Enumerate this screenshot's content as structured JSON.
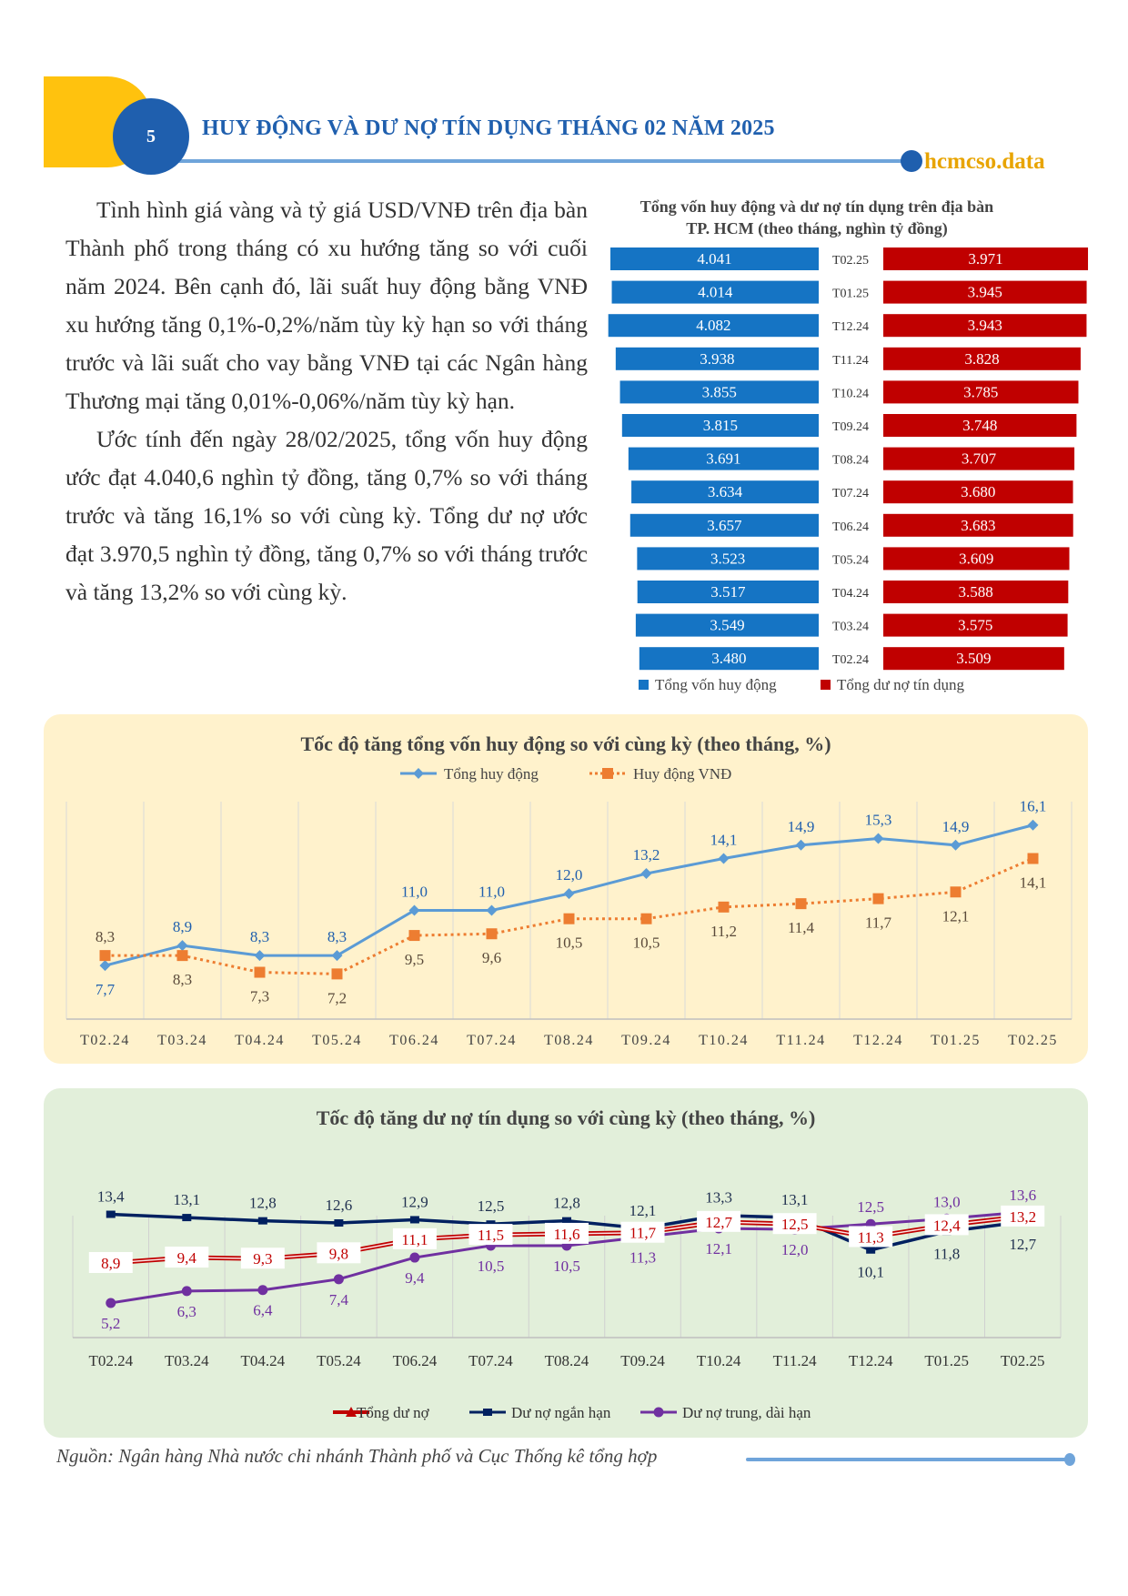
{
  "header": {
    "section_number": "5",
    "title": "HUY ĐỘNG VÀ DƯ NỢ TÍN DỤNG THÁNG 02 NĂM 2025",
    "brand": "hcmcso.data"
  },
  "body": {
    "paragraphs": [
      "Tình hình giá vàng và tỷ giá USD/VNĐ trên địa bàn Thành phố trong tháng có xu hướng tăng so với cuối năm 2024. Bên cạnh đó, lãi suất huy động bằng VNĐ xu hướng tăng 0,1%-0,2%/năm tùy kỳ hạn so với tháng trước và lãi suất cho vay bằng VNĐ tại các Ngân hàng Thương mại tăng 0,01%-0,06%/năm tùy kỳ hạn.",
      "Ước tính đến ngày 28/02/2025, tổng vốn huy động ước đạt 4.040,6 nghìn tỷ đồng, tăng 0,7% so với tháng trước và tăng 16,1% so với cùng kỳ. Tổng dư nợ ước đạt 3.970,5 nghìn tỷ đồng, tăng 0,7% so với tháng trước và tăng 13,2% so với cùng kỳ."
    ]
  },
  "source": "Nguồn: Ngân hàng Nhà nước chi nhánh Thành phố và Cục Thống kê tổng hợp",
  "colors": {
    "brand_blue": "#1F5FAE",
    "accent_yellow": "#FFC20E",
    "bar_blue": "#1574C4",
    "bar_red": "#C00000",
    "line_orange": "#ED7D31",
    "line_blue": "#5B9BD5",
    "navy": "#002060",
    "purple": "#7030A0",
    "panel_yellow": "#FFF2CC",
    "panel_green": "#E2EFDA"
  },
  "chart_data": [
    {
      "type": "bar",
      "title_lines": [
        "Tổng vốn huy động và dư nợ tín dụng trên địa bàn",
        "TP. HCM (theo tháng, nghìn tỷ đồng)"
      ],
      "categories": [
        "T02.25",
        "T01.25",
        "T12.24",
        "T11.24",
        "T10.24",
        "T09.24",
        "T08.24",
        "T07.24",
        "T06.24",
        "T05.24",
        "T04.24",
        "T03.24",
        "T02.24"
      ],
      "series": [
        {
          "name": "Tổng vốn huy động",
          "color": "#1574C4",
          "values": [
            4041,
            4014,
            4082,
            3938,
            3855,
            3815,
            3691,
            3634,
            3657,
            3523,
            3517,
            3549,
            3480
          ],
          "labels": [
            "4.041",
            "4.014",
            "4.082",
            "3.938",
            "3.855",
            "3.815",
            "3.691",
            "3.634",
            "3.657",
            "3.523",
            "3.517",
            "3.549",
            "3.480"
          ]
        },
        {
          "name": "Tổng dư nợ tín dụng",
          "color": "#C00000",
          "values": [
            3971,
            3945,
            3943,
            3828,
            3785,
            3748,
            3707,
            3680,
            3683,
            3609,
            3588,
            3575,
            3509
          ],
          "labels": [
            "3.971",
            "3.945",
            "3.943",
            "3.828",
            "3.785",
            "3.748",
            "3.707",
            "3.680",
            "3.683",
            "3.609",
            "3.588",
            "3.575",
            "3.509"
          ]
        }
      ],
      "xlim": [
        0,
        4200
      ],
      "legend": "bottom"
    },
    {
      "type": "line",
      "title": "Tốc độ tăng tổng vốn huy động so với cùng kỳ (theo tháng, %)",
      "categories": [
        "T02.24",
        "T03.24",
        "T04.24",
        "T05.24",
        "T06.24",
        "T07.24",
        "T08.24",
        "T09.24",
        "T10.24",
        "T11.24",
        "T12.24",
        "T01.25",
        "T02.25"
      ],
      "series": [
        {
          "name": "Tổng huy động",
          "color": "#5B9BD5",
          "marker": "diamond",
          "values": [
            7.7,
            8.9,
            8.3,
            8.3,
            11.0,
            11.0,
            12.0,
            13.2,
            14.1,
            14.9,
            15.3,
            14.9,
            16.1
          ],
          "labels": [
            "7,7",
            "8,9",
            "8,3",
            "8,3",
            "11,0",
            "11,0",
            "12,0",
            "13,2",
            "14,1",
            "14,9",
            "15,3",
            "14,9",
            "16,1"
          ],
          "label_pos": [
            "below",
            "above",
            "above",
            "above",
            "above",
            "above",
            "above",
            "above",
            "above",
            "above",
            "above",
            "above",
            "above"
          ]
        },
        {
          "name": "Huy động VNĐ",
          "color": "#ED7D31",
          "marker": "square",
          "dash": true,
          "values": [
            8.3,
            8.3,
            7.3,
            7.2,
            9.5,
            9.6,
            10.5,
            10.5,
            11.2,
            11.4,
            11.7,
            12.1,
            14.1
          ],
          "labels": [
            "8,3",
            "8,3",
            "7,3",
            "7,2",
            "9,5",
            "9,6",
            "10,5",
            "10,5",
            "11,2",
            "11,4",
            "11,7",
            "12,1",
            "14,1"
          ],
          "label_pos": [
            "above",
            "below",
            "below",
            "below",
            "below",
            "below",
            "below",
            "below",
            "below",
            "below",
            "below",
            "below",
            "below"
          ]
        }
      ],
      "ylim": [
        4.5,
        17.5
      ],
      "grid": "vertical",
      "legend": "top"
    },
    {
      "type": "line",
      "title": "Tốc độ tăng dư nợ tín dụng so với cùng kỳ (theo tháng, %)",
      "categories": [
        "T02.24",
        "T03.24",
        "T04.24",
        "T05.24",
        "T06.24",
        "T07.24",
        "T08.24",
        "T09.24",
        "T10.24",
        "T11.24",
        "T12.24",
        "T01.25",
        "T02.25"
      ],
      "series": [
        {
          "name": "Tổng dư nợ",
          "color": "#C00000",
          "marker": "triangle",
          "values": [
            8.9,
            9.4,
            9.3,
            9.8,
            11.1,
            11.5,
            11.6,
            11.7,
            12.7,
            12.5,
            11.3,
            12.4,
            13.2
          ],
          "labels": [
            "8,9",
            "9,4",
            "9,3",
            "9,8",
            "11,1",
            "11,5",
            "11,6",
            "11,7",
            "12,7",
            "12,5",
            "11,3",
            "12,4",
            "13,2"
          ]
        },
        {
          "name": "Dư nợ ngắn hạn",
          "color": "#002060",
          "marker": "dash",
          "values": [
            13.4,
            13.1,
            12.8,
            12.6,
            12.9,
            12.5,
            12.8,
            12.1,
            13.3,
            13.1,
            10.1,
            11.8,
            12.7
          ],
          "labels": [
            "13,4",
            "13,1",
            "12,8",
            "12,6",
            "12,9",
            "12,5",
            "12,8",
            "12,1",
            "13,3",
            "13,1",
            "10,1",
            "11,8",
            "12,7"
          ],
          "label_pos": [
            "above",
            "above",
            "above",
            "above",
            "above",
            "above",
            "above",
            "above",
            "above",
            "above",
            "below",
            "below",
            "below"
          ]
        },
        {
          "name": "Dư nợ trung, dài hạn",
          "color": "#7030A0",
          "marker": "circle",
          "values": [
            5.2,
            6.3,
            6.4,
            7.4,
            9.4,
            10.5,
            10.5,
            11.3,
            12.1,
            12.0,
            12.5,
            13.0,
            13.6
          ],
          "labels": [
            "5,2",
            "6,3",
            "6,4",
            "7,4",
            "9,4",
            "10,5",
            "10,5",
            "11,3",
            "12,1",
            "12,0",
            "12,5",
            "13,0",
            "13,6"
          ],
          "label_pos": [
            "below",
            "below",
            "below",
            "below",
            "below",
            "below",
            "below",
            "below",
            "below",
            "below",
            "above",
            "above",
            "above"
          ]
        }
      ],
      "ylim": [
        2.0,
        15.8
      ],
      "grid": "vertical",
      "legend": "bottom"
    }
  ]
}
